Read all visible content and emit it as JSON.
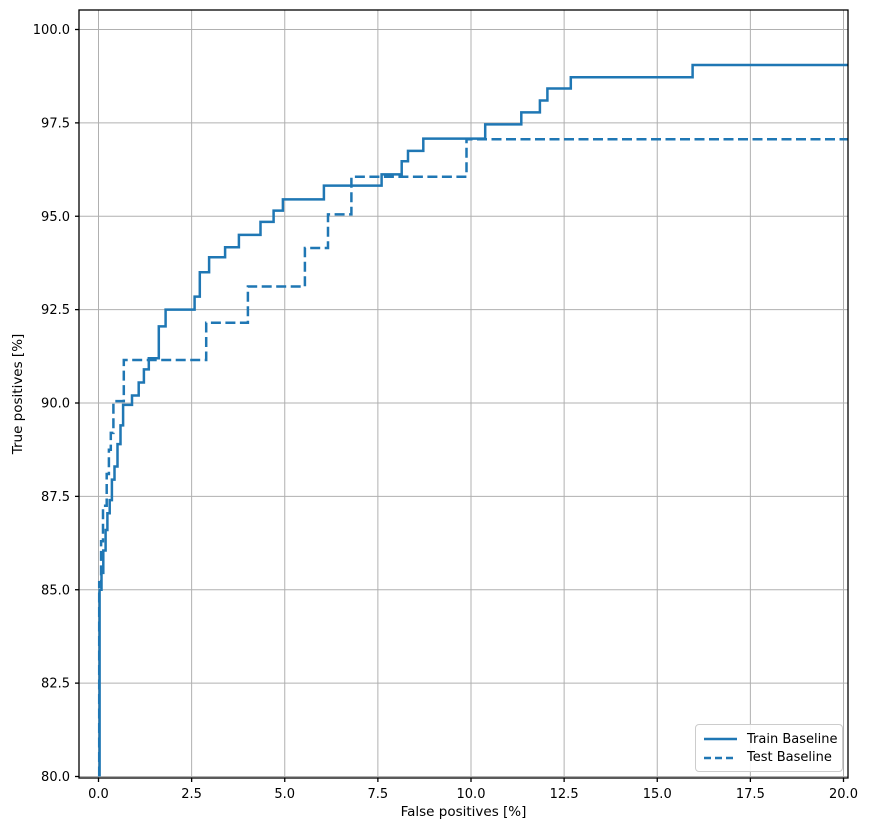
{
  "chart_data": {
    "type": "line",
    "title": "",
    "xlabel": "False positives [%]",
    "ylabel": "True positives [%]",
    "xlim": [
      -0.55,
      20.12
    ],
    "ylim": [
      80.0,
      100.5
    ],
    "xticks": [
      0,
      2.5,
      5,
      7.5,
      10,
      12.5,
      15,
      17.5,
      20
    ],
    "xtick_labels": [
      "0.0",
      "2.5",
      "5.0",
      "7.5",
      "10.0",
      "12.5",
      "15.0",
      "17.5",
      "20.0"
    ],
    "yticks": [
      80,
      82.5,
      85,
      87.5,
      90,
      92.5,
      95,
      97.5,
      100
    ],
    "ytick_labels": [
      "80.0",
      "82.5",
      "85.0",
      "87.5",
      "90.0",
      "92.5",
      "95.0",
      "97.5",
      "100.0"
    ],
    "grid": true,
    "legend_position": "lower right",
    "colors": {
      "line": "#1f77b4",
      "grid": "#b0b0b0",
      "spine": "#000000",
      "background": "#ffffff",
      "legend_border": "#cccccc"
    },
    "series": [
      {
        "name": "Train Baseline",
        "style": "solid",
        "drawstyle": "steps-post",
        "points": [
          [
            0.03,
            80.0
          ],
          [
            0.03,
            85.0
          ],
          [
            0.08,
            85.45
          ],
          [
            0.13,
            86.05
          ],
          [
            0.19,
            86.6
          ],
          [
            0.24,
            87.05
          ],
          [
            0.3,
            87.4
          ],
          [
            0.36,
            87.95
          ],
          [
            0.43,
            88.3
          ],
          [
            0.51,
            88.9
          ],
          [
            0.59,
            89.4
          ],
          [
            0.66,
            89.95
          ],
          [
            0.9,
            90.2
          ],
          [
            1.08,
            90.55
          ],
          [
            1.22,
            90.9
          ],
          [
            1.35,
            91.2
          ],
          [
            1.62,
            92.05
          ],
          [
            1.8,
            92.5
          ],
          [
            2.58,
            92.85
          ],
          [
            2.72,
            93.5
          ],
          [
            2.97,
            93.9
          ],
          [
            3.4,
            94.17
          ],
          [
            3.77,
            94.5
          ],
          [
            4.35,
            94.85
          ],
          [
            4.7,
            95.15
          ],
          [
            4.95,
            95.45
          ],
          [
            6.05,
            95.82
          ],
          [
            7.6,
            96.12
          ],
          [
            8.14,
            96.47
          ],
          [
            8.31,
            96.75
          ],
          [
            8.72,
            97.08
          ],
          [
            10.38,
            97.46
          ],
          [
            11.35,
            97.78
          ],
          [
            11.85,
            98.1
          ],
          [
            12.05,
            98.42
          ],
          [
            12.68,
            98.72
          ],
          [
            15.95,
            99.05
          ],
          [
            20.12,
            99.05
          ]
        ]
      },
      {
        "name": "Test Baseline",
        "style": "dashed",
        "drawstyle": "steps-post",
        "points": [
          [
            0.02,
            80.0
          ],
          [
            0.02,
            85.2
          ],
          [
            0.07,
            86.3
          ],
          [
            0.12,
            87.25
          ],
          [
            0.22,
            88.1
          ],
          [
            0.28,
            88.75
          ],
          [
            0.33,
            89.2
          ],
          [
            0.4,
            90.05
          ],
          [
            0.68,
            91.15
          ],
          [
            2.89,
            92.15
          ],
          [
            4.01,
            93.12
          ],
          [
            5.54,
            94.15
          ],
          [
            6.16,
            95.05
          ],
          [
            6.79,
            96.06
          ],
          [
            9.88,
            97.06
          ],
          [
            20.12,
            97.06
          ]
        ]
      }
    ]
  }
}
